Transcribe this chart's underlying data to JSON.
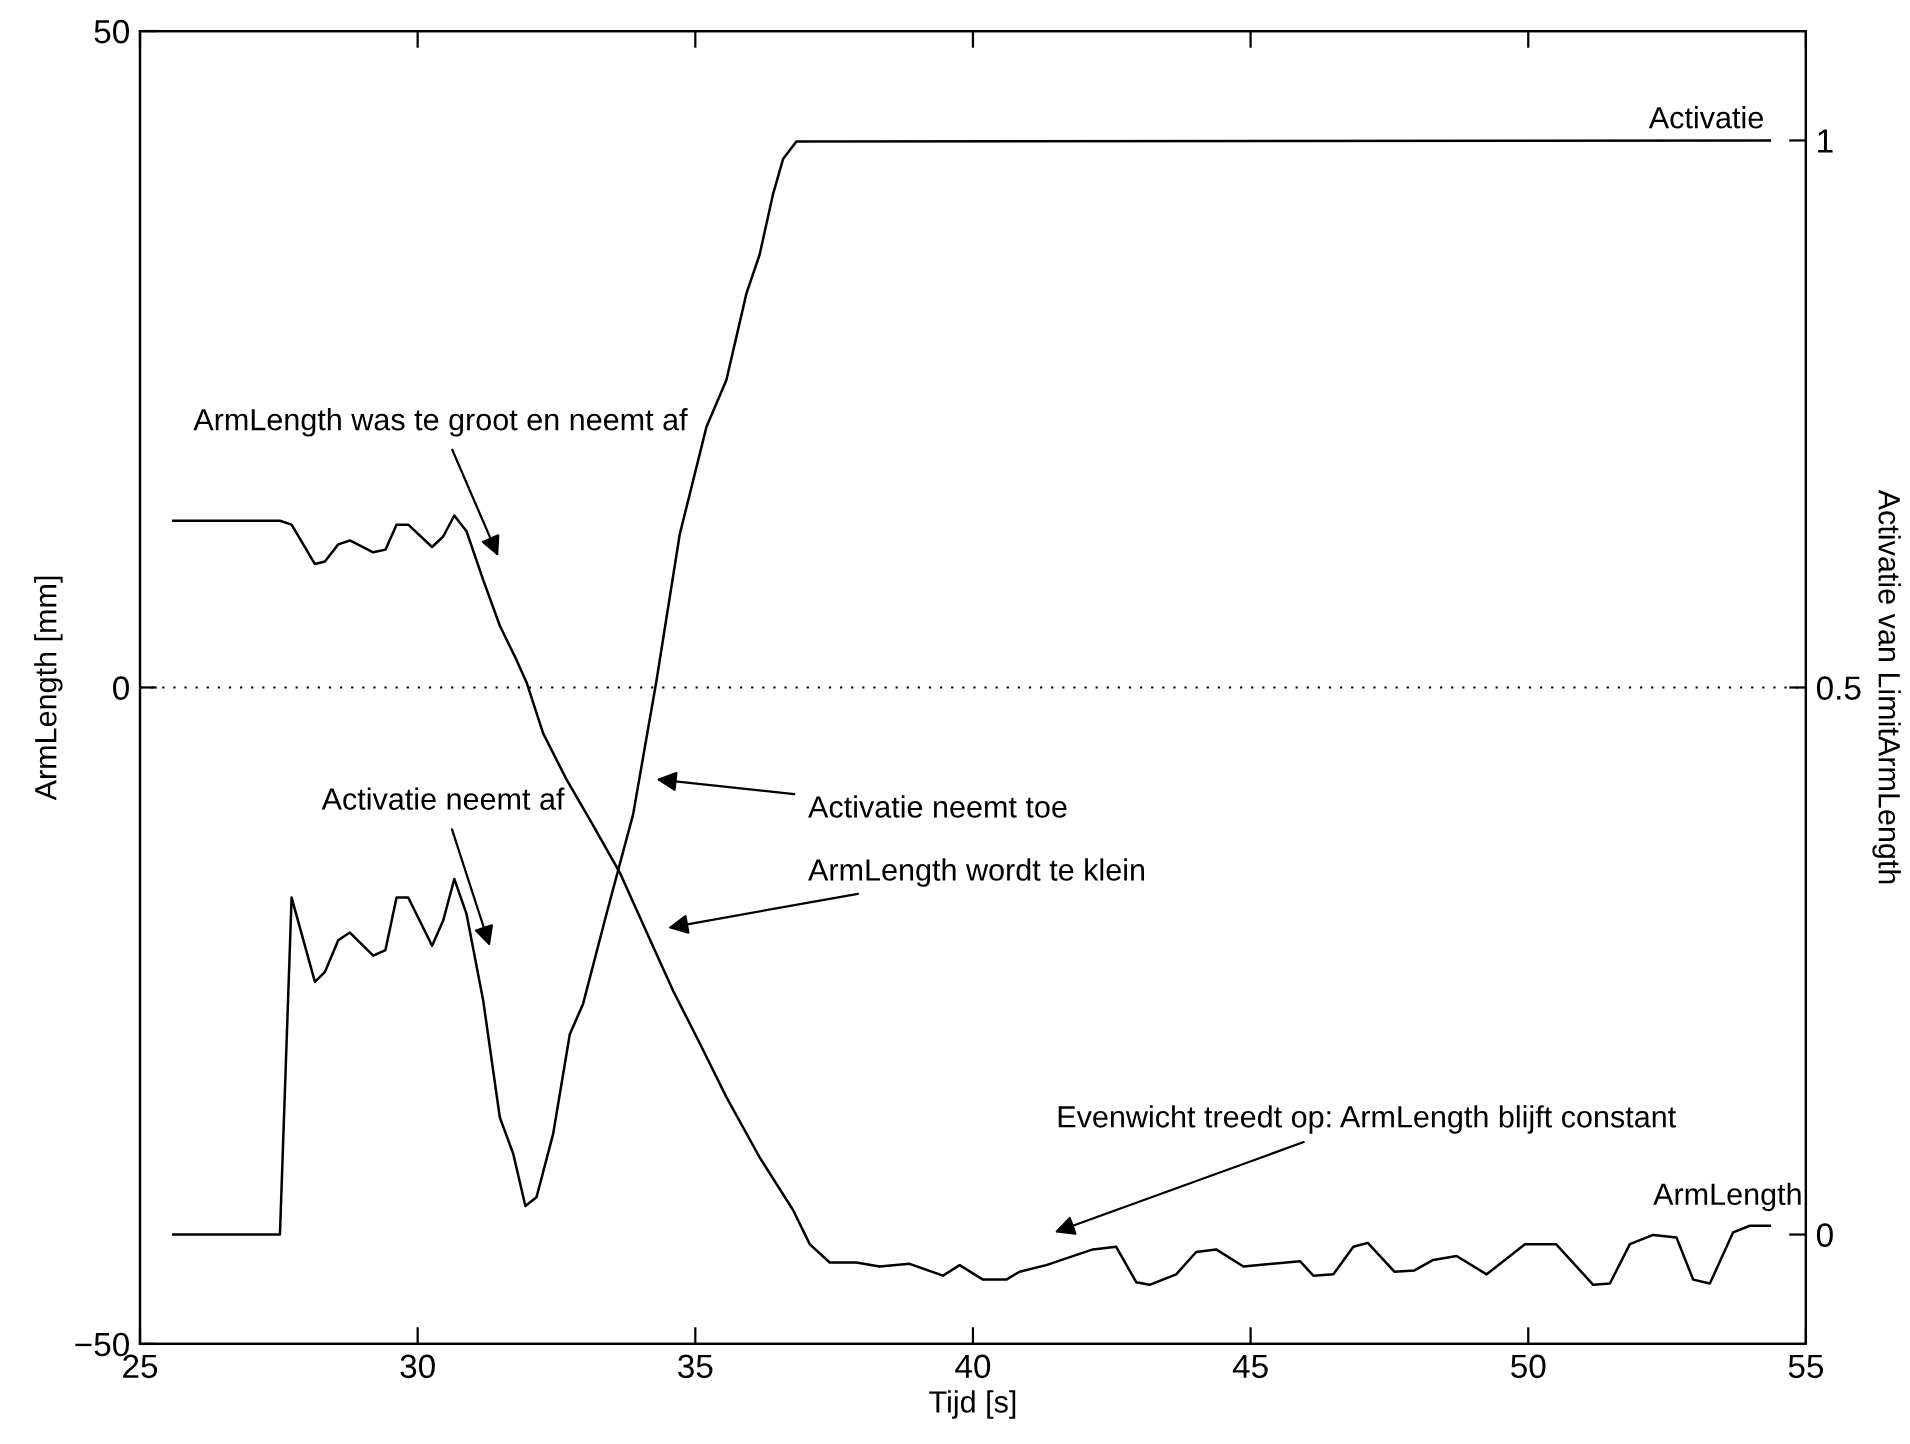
{
  "chart_data": {
    "type": "line",
    "xlabel": "Tijd [s]",
    "ylabel": "ArmLength [mm]",
    "y2label": "Activatie van LimitArmLength",
    "xlim": [
      25,
      55
    ],
    "xticks": [
      25,
      30,
      35,
      40,
      45,
      50,
      55
    ],
    "ylim": [
      -50,
      50
    ],
    "yticks": [
      -50,
      0,
      50
    ],
    "y2lim": [
      -0.1,
      1.1
    ],
    "y2ticks": [
      0,
      0.5,
      1
    ],
    "grid": false,
    "legend": false,
    "marker": "none",
    "line_style": "solid",
    "ref_lines": [
      {
        "axis": "y",
        "value": 0,
        "line_style": "dotted",
        "color": "#000000"
      }
    ],
    "series": [
      {
        "name": "ArmLength",
        "color": "#000000",
        "axis": "y",
        "x": [
          25.6,
          27.52,
          27.73,
          28.15,
          28.33,
          28.57,
          28.78,
          29.2,
          29.42,
          29.62,
          29.83,
          30.26,
          30.46,
          30.66,
          30.88,
          31.18,
          31.48,
          31.78,
          31.96,
          32.26,
          32.68,
          33.16,
          33.64,
          34.12,
          34.6,
          35.08,
          35.56,
          36.16,
          36.76,
          37.06,
          37.42,
          37.9,
          38.32,
          38.86,
          39.46,
          39.76,
          40.18,
          40.6,
          40.84,
          41.32,
          42.16,
          42.58,
          42.94,
          43.18,
          43.66,
          44.02,
          44.38,
          44.87,
          45.89,
          46.13,
          46.49,
          46.85,
          47.11,
          47.59,
          47.95,
          48.29,
          48.71,
          49.25,
          49.94,
          50.5,
          51.17,
          51.47,
          51.83,
          52.25,
          52.67,
          52.97,
          53.27,
          53.69,
          53.99,
          54.35
        ],
        "values": [
          12.7,
          12.7,
          12.4,
          9.4,
          9.6,
          10.9,
          11.2,
          10.3,
          10.5,
          12.4,
          12.4,
          10.7,
          11.5,
          13.1,
          11.9,
          8.2,
          4.7,
          2.1,
          0.4,
          -3.5,
          -7.0,
          -10.5,
          -14.1,
          -18.6,
          -23.1,
          -27.1,
          -31.2,
          -35.8,
          -39.8,
          -42.4,
          -43.8,
          -43.8,
          -44.1,
          -43.9,
          -44.8,
          -44.0,
          -45.1,
          -45.1,
          -44.5,
          -44.0,
          -42.8,
          -42.6,
          -45.3,
          -45.5,
          -44.7,
          -43.0,
          -42.8,
          -44.1,
          -43.7,
          -44.8,
          -44.7,
          -42.6,
          -42.3,
          -44.5,
          -44.4,
          -43.6,
          -43.3,
          -44.7,
          -42.4,
          -42.4,
          -45.5,
          -45.4,
          -42.4,
          -41.7,
          -41.9,
          -45.1,
          -45.4,
          -41.5,
          -41.0,
          -41.0
        ]
      },
      {
        "name": "Activatie",
        "color": "#000000",
        "axis": "y2",
        "x": [
          25.6,
          27.52,
          27.73,
          28.15,
          28.33,
          28.57,
          28.78,
          29.2,
          29.42,
          29.62,
          29.83,
          30.26,
          30.46,
          30.66,
          30.88,
          31.18,
          31.48,
          31.72,
          31.94,
          32.14,
          32.44,
          32.74,
          32.98,
          33.4,
          33.88,
          34.3,
          34.72,
          35.2,
          35.56,
          35.92,
          36.16,
          36.4,
          36.58,
          36.82,
          54.35
        ],
        "values": [
          0,
          0,
          0.308,
          0.231,
          0.24,
          0.269,
          0.276,
          0.255,
          0.26,
          0.308,
          0.308,
          0.264,
          0.287,
          0.325,
          0.293,
          0.214,
          0.107,
          0.074,
          0.026,
          0.034,
          0.092,
          0.183,
          0.211,
          0.293,
          0.384,
          0.506,
          0.64,
          0.738,
          0.781,
          0.86,
          0.896,
          0.951,
          0.983,
          0.999,
          1.0
        ]
      }
    ],
    "annotations": [
      "ArmLength was te groot en neemt af",
      "Activatie neemt af",
      "Activatie neemt toe",
      "ArmLength wordt te klein",
      "Evenwicht treedt op: ArmLength blijft constant"
    ]
  }
}
